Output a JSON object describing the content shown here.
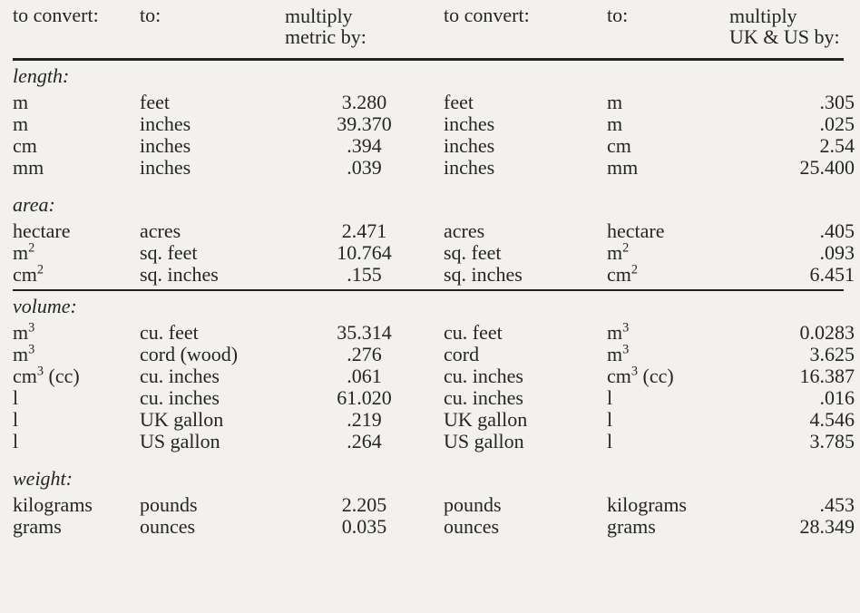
{
  "headers": {
    "h1": "to convert:",
    "h2": "to:",
    "h3a": "multiply",
    "h3b": "metric by:",
    "h4": "to convert:",
    "h5": "to:",
    "h6a": "multiply",
    "h6b": "UK & US by:"
  },
  "sections": {
    "length": {
      "label": "length:",
      "rows": [
        {
          "a": "m",
          "b": "feet",
          "c": "3.280",
          "d": "feet",
          "e": "m",
          "f": ".305"
        },
        {
          "a": "m",
          "b": "inches",
          "c": "39.370",
          "d": "inches",
          "e": "m",
          "f": ".025"
        },
        {
          "a": "cm",
          "b": "inches",
          "c": ".394",
          "d": "inches",
          "e": "cm",
          "f": "2.54"
        },
        {
          "a": "mm",
          "b": "inches",
          "c": ".039",
          "d": "inches",
          "e": "mm",
          "f": "25.400"
        }
      ]
    },
    "area": {
      "label": "area:",
      "rows": [
        {
          "a": "hectare",
          "b": "acres",
          "c": "2.471",
          "d": "acres",
          "e": "hectare",
          "f": ".405"
        },
        {
          "a": "m",
          "asup": "2",
          "b": "sq. feet",
          "c": "10.764",
          "d": "sq. feet",
          "e": "m",
          "esup": "2",
          "f": ".093"
        },
        {
          "a": "cm",
          "asup": "2",
          "b": "sq. inches",
          "c": ".155",
          "d": "sq. inches",
          "e": "cm",
          "esup": "2",
          "f": "6.451"
        }
      ]
    },
    "volume": {
      "label": "volume:",
      "rows": [
        {
          "a": "m",
          "asup": "3",
          "b": "cu. feet",
          "c": "35.314",
          "d": "cu. feet",
          "e": "m",
          "esup": "3",
          "f": "0.0283"
        },
        {
          "a": "m",
          "asup": "3",
          "b": "cord (wood)",
          "c": ".276",
          "d": "cord",
          "e": "m",
          "esup": "3",
          "f": "3.625"
        },
        {
          "a": "cm",
          "asup": "3",
          "apost": " (cc)",
          "b": "cu. inches",
          "c": ".061",
          "d": "cu. inches",
          "e": "cm",
          "esup": "3",
          "epost": " (cc)",
          "f": "16.387"
        },
        {
          "a": "l",
          "b": "cu. inches",
          "c": "61.020",
          "d": "cu. inches",
          "e": "l",
          "f": ".016"
        },
        {
          "a": "l",
          "b": "UK gallon",
          "c": ".219",
          "d": "UK gallon",
          "e": "l",
          "f": "4.546"
        },
        {
          "a": "l",
          "b": "US gallon",
          "c": ".264",
          "d": "US gallon",
          "e": "l",
          "f": "3.785"
        }
      ]
    },
    "weight": {
      "label": "weight:",
      "rows": [
        {
          "a": "kilograms",
          "b": "pounds",
          "c": "2.205",
          "d": "pounds",
          "e": "kilograms",
          "f": ".453"
        },
        {
          "a": "grams",
          "b": "ounces",
          "c": "0.035",
          "d": "ounces",
          "e": "grams",
          "f": "28.349"
        }
      ]
    }
  }
}
